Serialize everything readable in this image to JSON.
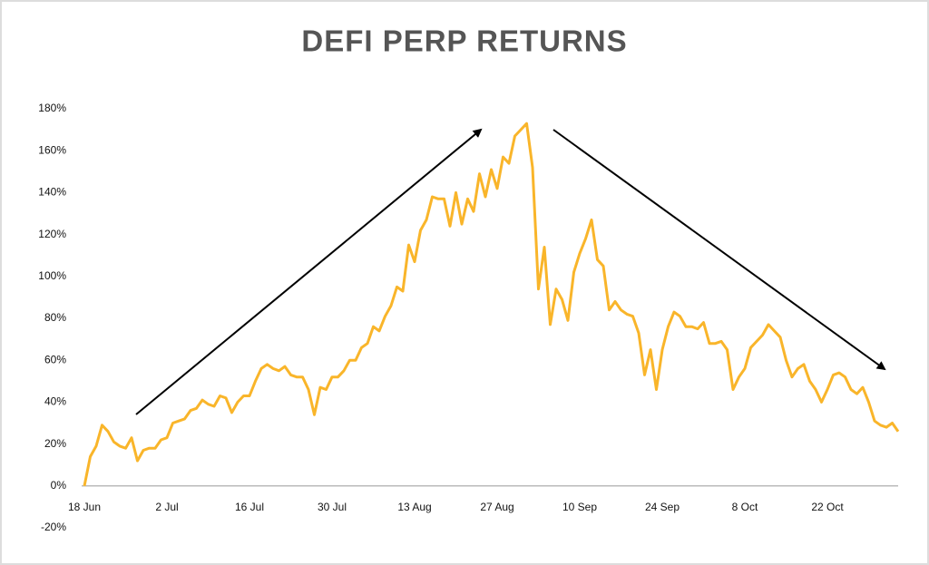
{
  "chart_data": {
    "type": "line",
    "title": "DEFI PERP RETURNS",
    "categories": [
      "18 Jun",
      null,
      null,
      null,
      null,
      null,
      null,
      null,
      null,
      null,
      null,
      null,
      null,
      null,
      "2 Jul",
      null,
      null,
      null,
      null,
      null,
      null,
      null,
      null,
      null,
      null,
      null,
      null,
      null,
      "16 Jul",
      null,
      null,
      null,
      null,
      null,
      null,
      null,
      null,
      null,
      null,
      null,
      null,
      null,
      "30 Jul",
      null,
      null,
      null,
      null,
      null,
      null,
      null,
      null,
      null,
      null,
      null,
      null,
      null,
      "13 Aug",
      null,
      null,
      null,
      null,
      null,
      null,
      null,
      null,
      null,
      null,
      null,
      null,
      null,
      "27 Aug",
      null,
      null,
      null,
      null,
      null,
      null,
      null,
      null,
      null,
      null,
      null,
      null,
      null,
      "10 Sep",
      null,
      null,
      null,
      null,
      null,
      null,
      null,
      null,
      null,
      null,
      null,
      null,
      null,
      "24 Sep",
      null,
      null,
      null,
      null,
      null,
      null,
      null,
      null,
      null,
      null,
      null,
      null,
      null,
      "8 Oct",
      null,
      null,
      null,
      null,
      null,
      null,
      null,
      null,
      null,
      null,
      null,
      null,
      null,
      "22 Oct",
      null,
      null,
      null,
      null,
      null,
      null,
      null,
      null,
      null,
      null,
      null,
      null
    ],
    "series": [
      {
        "name": "DeFi perp returns",
        "color": "#f9b52a",
        "values": [
          0,
          14,
          19,
          29,
          26,
          21,
          19,
          18,
          23,
          12,
          17,
          18,
          18,
          22,
          23,
          30,
          31,
          32,
          36,
          37,
          41,
          39,
          38,
          43,
          42,
          35,
          40,
          43,
          43,
          50,
          56,
          58,
          56,
          55,
          57,
          53,
          52,
          52,
          46,
          34,
          47,
          46,
          52,
          52,
          55,
          60,
          60,
          66,
          68,
          76,
          74,
          81,
          86,
          95,
          93,
          115,
          107,
          122,
          127,
          138,
          137,
          137,
          124,
          140,
          125,
          137,
          131,
          149,
          138,
          151,
          142,
          157,
          154,
          167,
          170,
          173,
          152,
          94,
          114,
          77,
          94,
          89,
          79,
          102,
          111,
          118,
          127,
          108,
          105,
          84,
          88,
          84,
          82,
          81,
          73,
          53,
          65,
          46,
          65,
          76,
          83,
          81,
          76,
          76,
          75,
          78,
          68,
          68,
          69,
          65,
          46,
          52,
          56,
          66,
          69,
          72,
          77,
          74,
          71,
          60,
          52,
          56,
          58,
          50,
          46,
          40,
          46,
          53,
          54,
          52,
          46,
          44,
          47,
          40,
          31,
          29,
          28,
          30,
          26
        ]
      }
    ],
    "ylim": [
      -20,
      180
    ],
    "yticks": [
      {
        "value": -20,
        "label": "-20%"
      },
      {
        "value": 0,
        "label": "0%"
      },
      {
        "value": 20,
        "label": "20%"
      },
      {
        "value": 40,
        "label": "40%"
      },
      {
        "value": 60,
        "label": "60%"
      },
      {
        "value": 80,
        "label": "80%"
      },
      {
        "value": 100,
        "label": "100%"
      },
      {
        "value": 120,
        "label": "120%"
      },
      {
        "value": 140,
        "label": "140%"
      },
      {
        "value": 160,
        "label": "160%"
      },
      {
        "value": 180,
        "label": "180%"
      }
    ],
    "grid": false
  }
}
